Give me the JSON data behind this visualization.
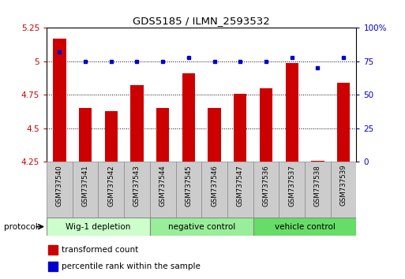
{
  "title": "GDS5185 / ILMN_2593532",
  "samples": [
    "GSM737540",
    "GSM737541",
    "GSM737542",
    "GSM737543",
    "GSM737544",
    "GSM737545",
    "GSM737546",
    "GSM737547",
    "GSM737536",
    "GSM737537",
    "GSM737538",
    "GSM737539"
  ],
  "transformed_count": [
    5.17,
    4.65,
    4.63,
    4.82,
    4.65,
    4.91,
    4.65,
    4.76,
    4.8,
    4.99,
    4.26,
    4.84
  ],
  "percentile_rank": [
    82,
    75,
    75,
    75,
    75,
    78,
    75,
    75,
    75,
    78,
    70,
    78
  ],
  "groups": [
    {
      "label": "Wig-1 depletion",
      "start": 0,
      "end": 4
    },
    {
      "label": "negative control",
      "start": 4,
      "end": 8
    },
    {
      "label": "vehicle control",
      "start": 8,
      "end": 12
    }
  ],
  "group_colors": [
    "#ccffcc",
    "#99ee99",
    "#66dd66"
  ],
  "ylim_left": [
    4.25,
    5.25
  ],
  "ylim_right": [
    0,
    100
  ],
  "yticks_left": [
    4.25,
    4.5,
    4.75,
    5.0,
    5.25
  ],
  "ytick_labels_left": [
    "4.25",
    "4.5",
    "4.75",
    "5",
    "5.25"
  ],
  "yticks_right": [
    0,
    25,
    50,
    75,
    100
  ],
  "ytick_labels_right": [
    "0",
    "25",
    "50",
    "75",
    "100%"
  ],
  "bar_color": "#cc0000",
  "dot_color": "#0000cc",
  "bar_width": 0.5,
  "legend_items": [
    {
      "label": "transformed count",
      "color": "#cc0000"
    },
    {
      "label": "percentile rank within the sample",
      "color": "#0000cc"
    }
  ],
  "tick_label_color_left": "#cc0000",
  "tick_label_color_right": "#0000cc",
  "label_bg_color": "#cccccc",
  "protocol_label": "protocol"
}
